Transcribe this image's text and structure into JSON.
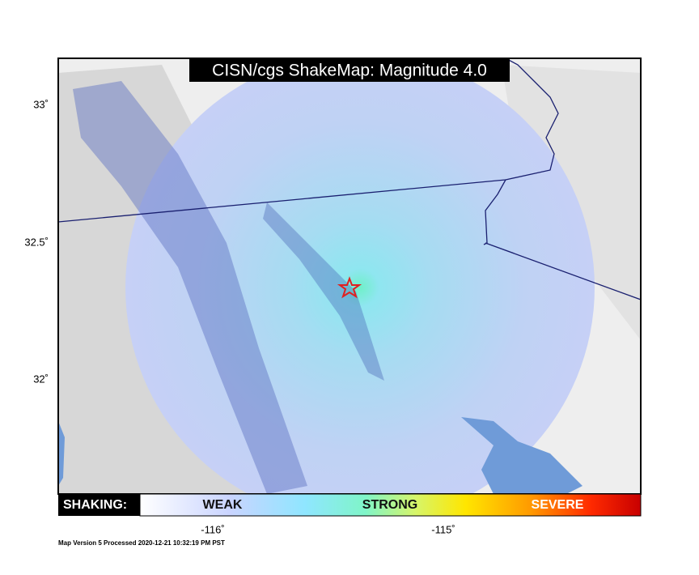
{
  "title": "CISN/cgs ShakeMap: Magnitude 4.0",
  "axes": {
    "y_labels": [
      "33˚",
      "32.5˚",
      "32˚"
    ],
    "x_labels": [
      "-116˚",
      "-115˚"
    ]
  },
  "legend": {
    "label": "SHAKING:",
    "levels": [
      "WEAK",
      "STRONG",
      "SEVERE"
    ]
  },
  "footer": "Map Version 5 Processed 2020-12-21 10:32:19 PM PST"
}
